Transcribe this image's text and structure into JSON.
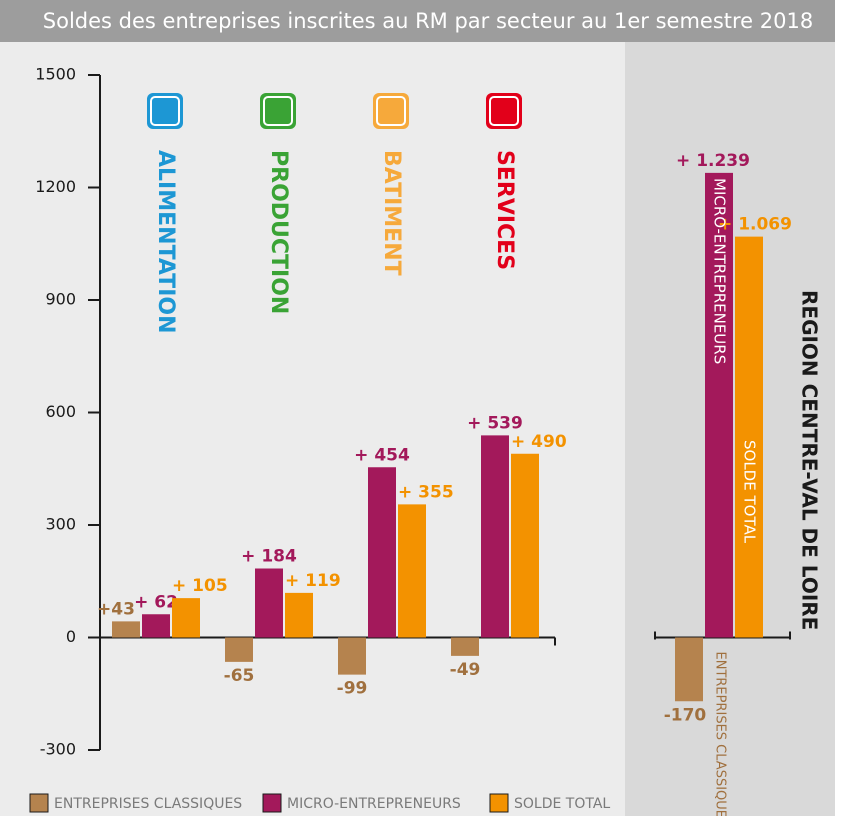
{
  "chart_data": [
    {
      "type": "bar",
      "title": "Soldes des entreprises inscrites au RM par secteur au 1er semestre 2018",
      "categories": [
        "ALIMENTATION",
        "PRODUCTION",
        "BATIMENT",
        "SERVICES"
      ],
      "category_colors": [
        "#1d97d4",
        "#3aa335",
        "#f6a93b",
        "#e2001a"
      ],
      "series": [
        {
          "name": "ENTREPRISES CLASSIQUES",
          "color": "#b5834e",
          "values": [
            43,
            -65,
            -99,
            -49
          ],
          "value_labels": [
            "+43",
            "-65",
            "-99",
            "-49"
          ]
        },
        {
          "name": "MICRO-ENTREPRENEURS",
          "color": "#a3195b",
          "values": [
            62,
            184,
            454,
            539
          ],
          "value_labels": [
            "+ 62",
            "+ 184",
            "+ 454",
            "+ 539"
          ]
        },
        {
          "name": "SOLDE TOTAL",
          "color": "#f39200",
          "values": [
            105,
            119,
            355,
            490
          ],
          "value_labels": [
            "+ 105",
            "+ 119",
            "+ 355",
            "+ 490"
          ]
        }
      ],
      "ylim": [
        -300,
        1500
      ],
      "yticks": [
        -300,
        0,
        300,
        600,
        900,
        1200,
        1500
      ]
    },
    {
      "type": "bar",
      "title": "REGION CENTRE-VAL DE LOIRE",
      "categories": [
        "ENTREPRISES CLASSIQUES",
        "MICRO-ENTREPRENEURS",
        "SOLDE TOTAL"
      ],
      "colors": [
        "#b5834e",
        "#a3195b",
        "#f39200"
      ],
      "values": [
        -170,
        1239,
        1069
      ],
      "value_labels": [
        "-170",
        "+ 1.239",
        "+ 1.069"
      ],
      "ylim": [
        -300,
        1500
      ]
    }
  ]
}
